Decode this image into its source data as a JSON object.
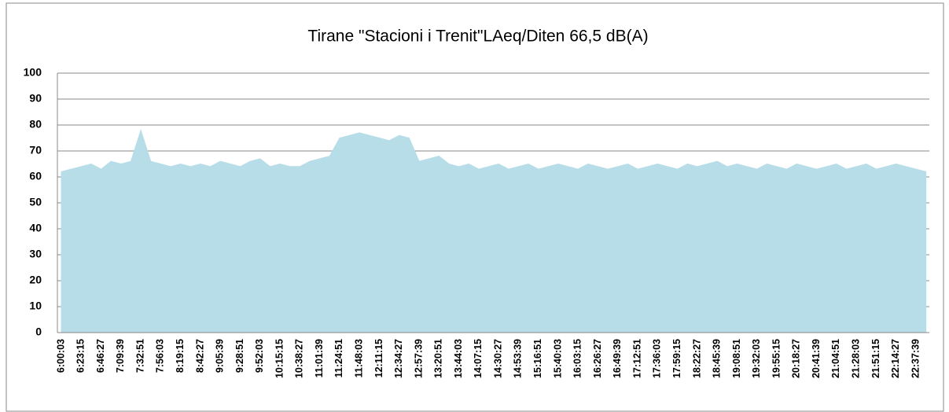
{
  "chart_data": {
    "type": "area",
    "title": "Tirane \"Stacioni i Trenit\"LAeq/Diten 66,5 dB(A)",
    "categories": [
      "6:00:03",
      null,
      "6:23:15",
      null,
      "6:46:27",
      null,
      "7:09:39",
      null,
      "7:32:51",
      null,
      "7:56:03",
      null,
      "8:19:15",
      null,
      "8:42:27",
      null,
      "9:05:39",
      null,
      "9:28:51",
      null,
      "9:52:03",
      null,
      "10:15:15",
      null,
      "10:38:27",
      null,
      "11:01:39",
      null,
      "11:24:51",
      null,
      "11:48:03",
      null,
      "12:11:15",
      null,
      "12:34:27",
      null,
      "12:57:39",
      null,
      "13:20:51",
      null,
      "13:44:03",
      null,
      "14:07:15",
      null,
      "14:30:27",
      null,
      "14:53:39",
      null,
      "15:16:51",
      null,
      "15:40:03",
      null,
      "16:03:15",
      null,
      "16:26:27",
      null,
      "16:49:39",
      null,
      "17:12:51",
      null,
      "17:36:03",
      null,
      "17:59:15",
      null,
      "18:22:27",
      null,
      "18:45:39",
      null,
      "19:08:51",
      null,
      "19:32:03",
      null,
      "19:55:15",
      null,
      "20:18:27",
      null,
      "20:41:39",
      null,
      "21:04:51",
      null,
      "21:28:03",
      null,
      "21:51:15",
      null,
      "22:14:27",
      null,
      "22:37:39",
      null
    ],
    "values": [
      62,
      63,
      64,
      65,
      63,
      66,
      65,
      66,
      78,
      66,
      65,
      64,
      65,
      64,
      65,
      64,
      66,
      65,
      64,
      66,
      67,
      64,
      65,
      64,
      64,
      66,
      67,
      68,
      75,
      76,
      77,
      76,
      75,
      74,
      76,
      75,
      66,
      67,
      68,
      65,
      64,
      65,
      63,
      64,
      65,
      63,
      64,
      65,
      63,
      64,
      65,
      64,
      63,
      65,
      64,
      63,
      64,
      65,
      63,
      64,
      65,
      64,
      63,
      65,
      64,
      65,
      66,
      64,
      65,
      64,
      63,
      65,
      64,
      63,
      65,
      64,
      63,
      64,
      65,
      63,
      64,
      65,
      63,
      64,
      65,
      64,
      63,
      62
    ],
    "color": "#b7dde8",
    "ylim": [
      0,
      100
    ],
    "yticks": [
      0,
      10,
      20,
      30,
      40,
      50,
      60,
      70,
      80,
      90,
      100
    ],
    "grid": true
  }
}
